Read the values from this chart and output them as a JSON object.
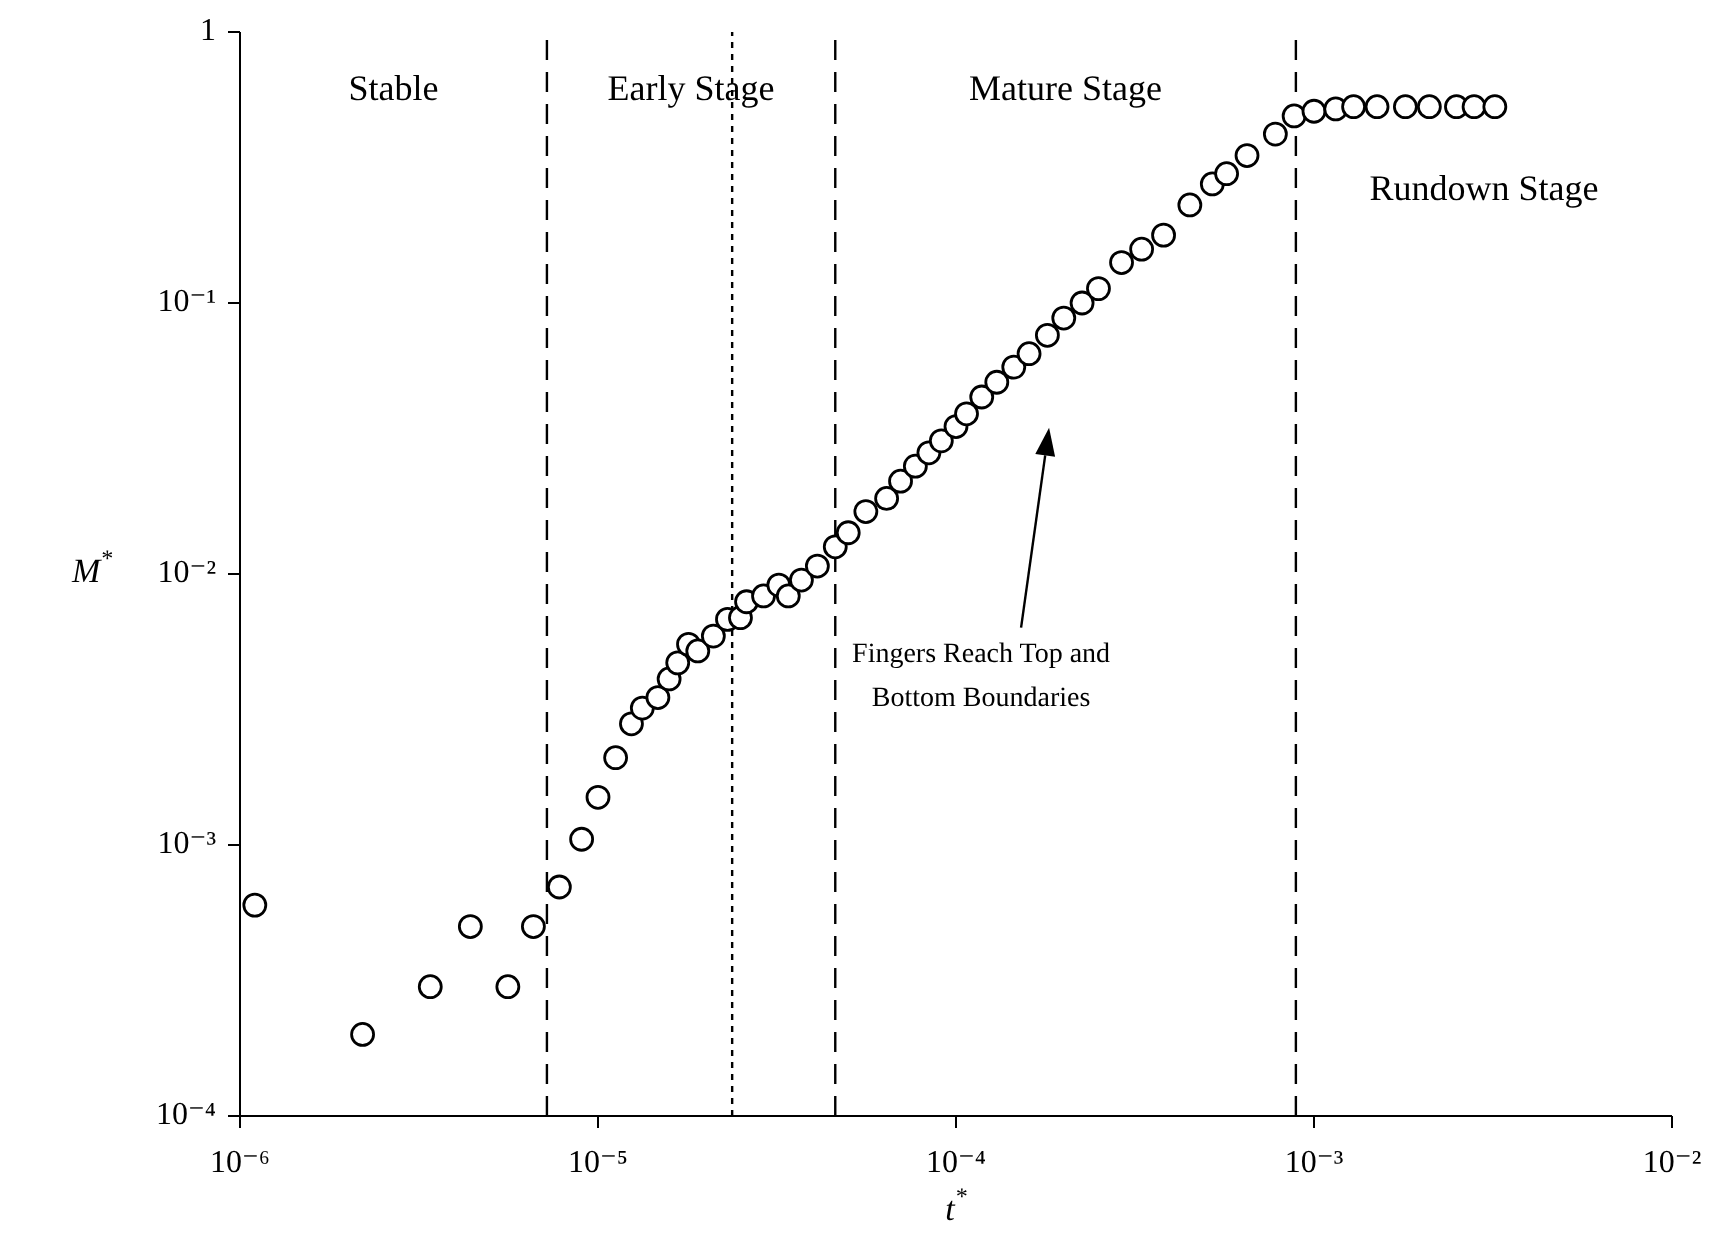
{
  "chart_data": {
    "type": "scatter",
    "xlabel": "t$^{*}$",
    "ylabel": "M$^{*}$",
    "log": "xy",
    "marker": "circle",
    "xlim": [
      1e-06,
      0.01
    ],
    "ylim": [
      0.0001,
      1
    ],
    "xticks": [
      {
        "value": 1e-06,
        "label": "10⁻⁶"
      },
      {
        "value": 1e-05,
        "label": "10⁻⁵"
      },
      {
        "value": 0.0001,
        "label": "10⁻⁴"
      },
      {
        "value": 0.001,
        "label": "10⁻³"
      },
      {
        "value": 0.01,
        "label": "10⁻²"
      }
    ],
    "yticks": [
      {
        "value": 0.0001,
        "label": "10⁻⁴"
      },
      {
        "value": 0.001,
        "label": "10⁻³"
      },
      {
        "value": 0.01,
        "label": "10⁻²"
      },
      {
        "value": 0.1,
        "label": "10⁻¹"
      },
      1
    ],
    "series": [
      {
        "color": "#000000",
        "x": [
          1.1e-06,
          2.2e-06,
          3.4e-06,
          4.4e-06,
          5.6e-06,
          6.6e-06,
          7.8e-06,
          9e-06,
          1e-05,
          1.12e-05,
          1.24e-05,
          1.33e-05,
          1.47e-05,
          1.58e-05,
          1.67e-05,
          1.79e-05,
          1.9e-05,
          2.1e-05,
          2.3e-05,
          2.5e-05,
          2.6e-05,
          2.9e-05,
          3.2e-05,
          3.4e-05,
          3.7e-05,
          4.1e-05,
          4.6e-05,
          5e-05,
          5.6e-05,
          6.4e-05,
          7e-05,
          7.7e-05,
          8.4e-05,
          9.1e-05,
          0.0001,
          0.000107,
          0.000118,
          0.00013,
          0.000145,
          0.00016,
          0.00018,
          0.0002,
          0.000225,
          0.00025,
          0.00029,
          0.00033,
          0.00038,
          0.00045,
          0.00052,
          0.00057,
          0.00065,
          0.00078,
          0.00088,
          0.001,
          0.00115,
          0.00129,
          0.0015,
          0.0018,
          0.0021,
          0.0025,
          0.0028,
          0.0032
        ],
        "values": [
          0.0006,
          0.0002,
          0.0003,
          0.0005,
          0.0003,
          0.0005,
          0.0007,
          0.00105,
          0.0015,
          0.0021,
          0.0028,
          0.0032,
          0.0035,
          0.0041,
          0.0047,
          0.0055,
          0.0052,
          0.0059,
          0.0068,
          0.0069,
          0.0079,
          0.0083,
          0.0091,
          0.0083,
          0.0095,
          0.0107,
          0.0126,
          0.0142,
          0.017,
          0.019,
          0.022,
          0.025,
          0.028,
          0.031,
          0.035,
          0.039,
          0.045,
          0.051,
          0.058,
          0.065,
          0.076,
          0.088,
          0.1,
          0.113,
          0.141,
          0.158,
          0.178,
          0.23,
          0.275,
          0.3,
          0.35,
          0.42,
          0.49,
          0.51,
          0.52,
          0.53,
          0.53,
          0.53,
          0.53,
          0.53,
          0.53,
          0.53
        ]
      }
    ],
    "ref_lines": [
      {
        "axis": "x",
        "value": 7.2e-06,
        "line_style": "dashed",
        "color": "#000000"
      },
      {
        "axis": "x",
        "value": 2.37e-05,
        "line_style": "dotted",
        "color": "#000000"
      },
      {
        "axis": "x",
        "value": 4.6e-05,
        "line_style": "dashed",
        "color": "#000000"
      },
      {
        "axis": "x",
        "value": 0.00089,
        "line_style": "dashed",
        "color": "#000000"
      }
    ],
    "annotations": [
      "Stable",
      "Early Stage",
      "Mature Stage",
      "Rundown Stage",
      "Fingers Reach Top and Bottom Boundaries"
    ]
  }
}
